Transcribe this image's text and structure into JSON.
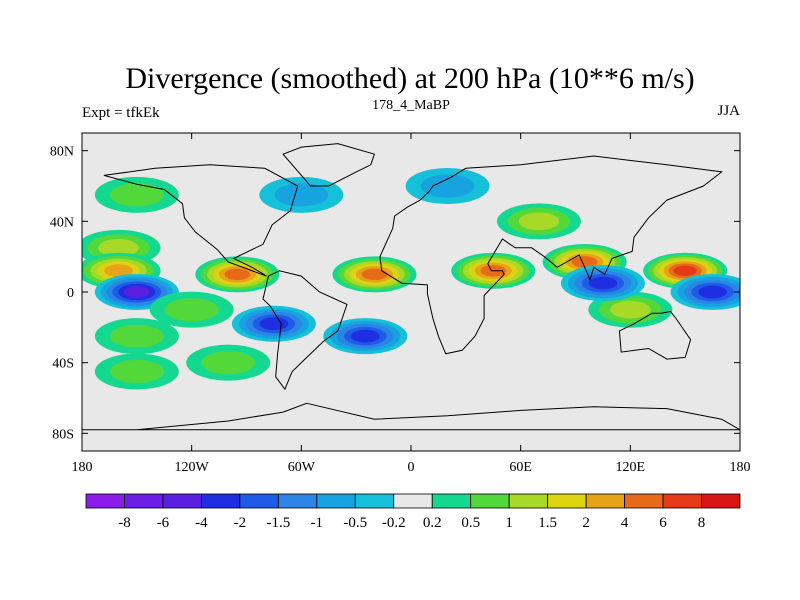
{
  "chart_data": {
    "type": "heatmap",
    "title": "Divergence (smoothed) at 200 hPa (10**6 m/s)",
    "subtitle_left": "Expt = tfkEk",
    "subtitle_center": "178_4_MaBP",
    "subtitle_right": "JJA",
    "xlim": [
      -180,
      180
    ],
    "ylim": [
      -90,
      90
    ],
    "x_ticks": [
      {
        "value": -180,
        "label": "180"
      },
      {
        "value": -120,
        "label": "120W"
      },
      {
        "value": -60,
        "label": "60W"
      },
      {
        "value": 0,
        "label": "0"
      },
      {
        "value": 60,
        "label": "60E"
      },
      {
        "value": 120,
        "label": "120E"
      },
      {
        "value": 180,
        "label": "180"
      }
    ],
    "y_ticks": [
      {
        "value": 80,
        "label": "80N"
      },
      {
        "value": 40,
        "label": "40N"
      },
      {
        "value": 0,
        "label": "0"
      },
      {
        "value": -40,
        "label": "40S"
      },
      {
        "value": -80,
        "label": "80S"
      }
    ],
    "levels": [
      -8,
      -6,
      -4,
      -2,
      -1.5,
      -1,
      -0.5,
      -0.2,
      0.2,
      0.5,
      1,
      1.5,
      2,
      4,
      6,
      8
    ],
    "level_labels": [
      "-8",
      "-6",
      "-4",
      "-2",
      "-1.5",
      "-1",
      "-0.5",
      "-0.2",
      "0.2",
      "0.5",
      "1",
      "1.5",
      "2",
      "4",
      "6",
      "8"
    ],
    "colors": [
      "#8c1ce8",
      "#6a1ee6",
      "#5a20e0",
      "#1e2ee0",
      "#1e5ce8",
      "#2b84e6",
      "#17a2e0",
      "#16c0d8",
      "#e8e8e8",
      "#15d890",
      "#52d83a",
      "#a8d828",
      "#dcd412",
      "#e6a218",
      "#e66a18",
      "#e63a16",
      "#d81616"
    ],
    "field": [
      {
        "lon": -150,
        "lat": 55,
        "value": 0.7
      },
      {
        "lon": -160,
        "lat": 25,
        "value": 1.2
      },
      {
        "lon": -160,
        "lat": 12,
        "value": 3.5
      },
      {
        "lon": -150,
        "lat": 0,
        "value": -4.0
      },
      {
        "lon": -120,
        "lat": -10,
        "value": 0.8
      },
      {
        "lon": -150,
        "lat": -25,
        "value": 0.9
      },
      {
        "lon": -150,
        "lat": -45,
        "value": 0.8
      },
      {
        "lon": -100,
        "lat": -40,
        "value": 0.7
      },
      {
        "lon": -75,
        "lat": -18,
        "value": -3.5
      },
      {
        "lon": -25,
        "lat": -25,
        "value": -3.0
      },
      {
        "lon": -95,
        "lat": 10,
        "value": 4.5
      },
      {
        "lon": -60,
        "lat": 55,
        "value": -0.8
      },
      {
        "lon": -20,
        "lat": 10,
        "value": 4.0
      },
      {
        "lon": 45,
        "lat": 12,
        "value": 5.5
      },
      {
        "lon": 95,
        "lat": 17,
        "value": 4.5
      },
      {
        "lon": 150,
        "lat": 12,
        "value": 6.0
      },
      {
        "lon": 120,
        "lat": -10,
        "value": 1.2
      },
      {
        "lon": 105,
        "lat": 5,
        "value": -2.0
      },
      {
        "lon": 165,
        "lat": 0,
        "value": -3.0
      },
      {
        "lon": 20,
        "lat": 60,
        "value": -0.8
      },
      {
        "lon": 70,
        "lat": 40,
        "value": 1.0
      }
    ],
    "grid": false,
    "legend": "bottom"
  }
}
